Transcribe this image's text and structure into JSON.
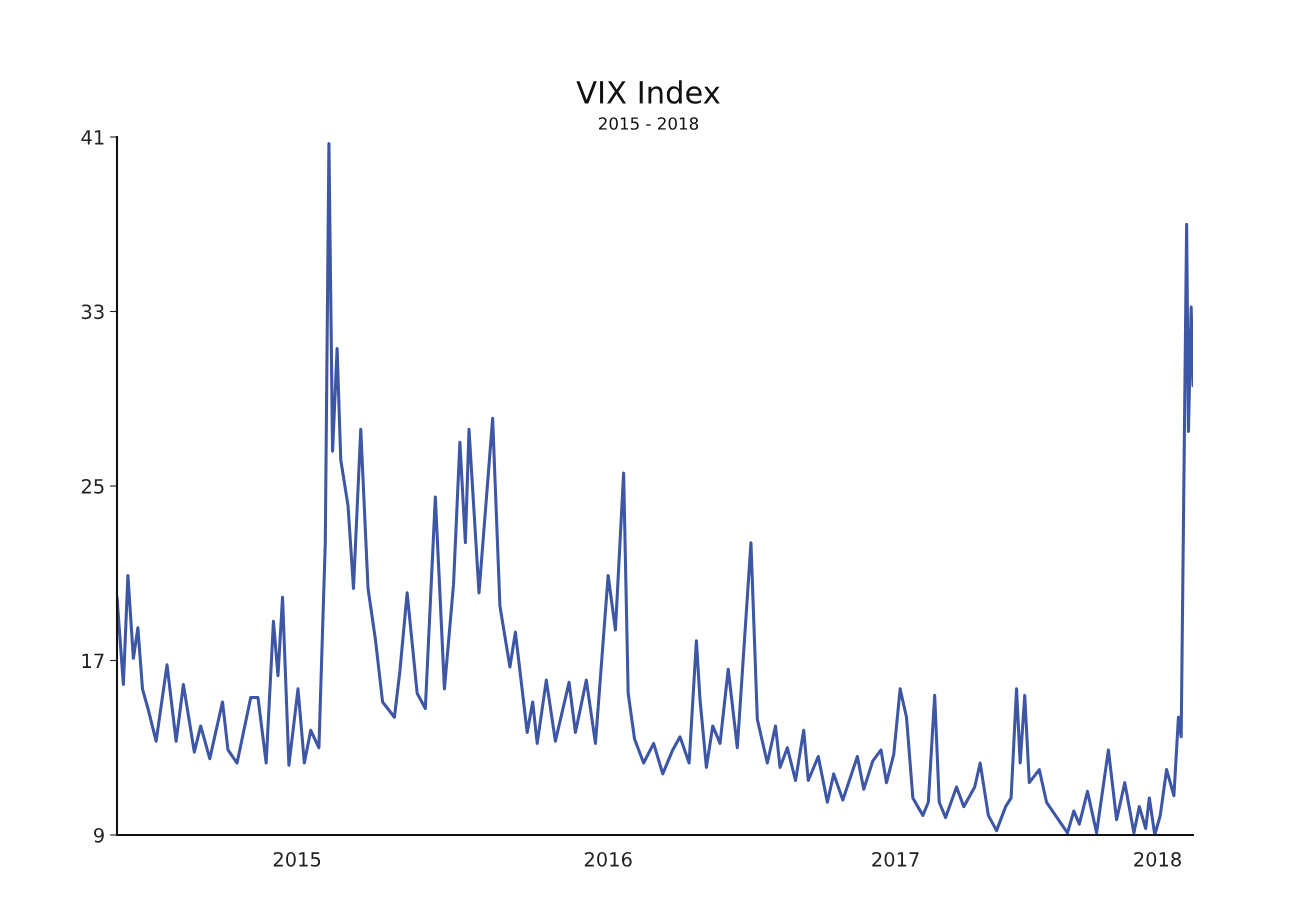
{
  "chart_data": {
    "type": "line",
    "title": "VIX Index",
    "subtitle": "2015 - 2018",
    "x": [
      "2015-01-02",
      "2015-01-09",
      "2015-01-14",
      "2015-01-20",
      "2015-01-25",
      "2015-01-30",
      "2015-02-05",
      "2015-02-14",
      "2015-02-26",
      "2015-03-08",
      "2015-03-16",
      "2015-03-28",
      "2015-04-04",
      "2015-04-14",
      "2015-04-28",
      "2015-05-04",
      "2015-05-14",
      "2015-05-29",
      "2015-06-06",
      "2015-06-15",
      "2015-06-23",
      "2015-06-28",
      "2015-07-03",
      "2015-07-10",
      "2015-07-20",
      "2015-07-27",
      "2015-08-03",
      "2015-08-12",
      "2015-08-19",
      "2015-08-23",
      "2015-08-27",
      "2015-09-01",
      "2015-09-05",
      "2015-09-13",
      "2015-09-19",
      "2015-09-27",
      "2015-10-05",
      "2015-10-13",
      "2015-10-21",
      "2015-11-03",
      "2015-11-09",
      "2015-11-17",
      "2015-11-28",
      "2015-12-07",
      "2015-12-18",
      "2015-12-28",
      "2016-01-07",
      "2016-01-14",
      "2016-01-20",
      "2016-01-24",
      "2016-02-04",
      "2016-02-19",
      "2016-02-27",
      "2016-03-09",
      "2016-03-15",
      "2016-03-28",
      "2016-04-03",
      "2016-04-08",
      "2016-04-18",
      "2016-04-28",
      "2016-05-13",
      "2016-05-20",
      "2016-06-01",
      "2016-06-11",
      "2016-06-25",
      "2016-07-03",
      "2016-07-12",
      "2016-07-17",
      "2016-07-24",
      "2016-08-03",
      "2016-08-14",
      "2016-08-24",
      "2016-09-04",
      "2016-09-12",
      "2016-09-22",
      "2016-09-30",
      "2016-10-04",
      "2016-10-11",
      "2016-10-18",
      "2016-10-26",
      "2016-11-04",
      "2016-11-14",
      "2016-11-29",
      "2016-12-06",
      "2016-12-17",
      "2016-12-26",
      "2016-12-31",
      "2017-01-08",
      "2017-01-17",
      "2017-01-26",
      "2017-01-31",
      "2017-02-11",
      "2017-02-21",
      "2017-02-28",
      "2017-03-10",
      "2017-03-26",
      "2017-04-02",
      "2017-04-12",
      "2017-04-21",
      "2017-04-27",
      "2017-05-05",
      "2017-05-12",
      "2017-05-19",
      "2017-05-26",
      "2017-06-06",
      "2017-06-12",
      "2017-06-19",
      "2017-06-24",
      "2017-07-01",
      "2017-07-13",
      "2017-07-21",
      "2017-08-02",
      "2017-08-08",
      "2017-08-17",
      "2017-08-26",
      "2017-09-05",
      "2017-09-11",
      "2017-09-17",
      "2017-09-21",
      "2017-09-26",
      "2017-10-01",
      "2017-10-12",
      "2017-10-20",
      "2017-11-02",
      "2017-11-12",
      "2017-11-19",
      "2017-11-25",
      "2017-12-04",
      "2017-12-14",
      "2017-12-27",
      "2018-01-05",
      "2018-01-14",
      "2018-01-24",
      "2018-01-30",
      "2018-02-06",
      "2018-02-10",
      "2018-02-16",
      "2018-02-22",
      "2018-03-01",
      "2018-03-09",
      "2018-03-14",
      "2018-03-17",
      "2018-03-23",
      "2018-03-25",
      "2018-03-28",
      "2018-03-30"
    ],
    "series": [
      {
        "color": "#3d56a6",
        "values": [
          19.9,
          15.9,
          20.9,
          17.1,
          18.5,
          15.7,
          14.8,
          13.3,
          16.8,
          13.3,
          15.9,
          12.8,
          14.0,
          12.5,
          15.1,
          12.9,
          12.3,
          15.3,
          15.3,
          12.3,
          18.8,
          16.3,
          19.9,
          12.2,
          15.7,
          12.3,
          13.8,
          13.0,
          22.4,
          40.7,
          26.6,
          31.3,
          26.2,
          24.1,
          20.3,
          27.6,
          20.3,
          18.0,
          15.1,
          14.4,
          16.5,
          20.1,
          15.5,
          14.8,
          24.5,
          15.7,
          20.5,
          27.0,
          22.4,
          27.6,
          20.1,
          28.1,
          19.5,
          16.7,
          18.3,
          13.7,
          15.1,
          13.2,
          16.1,
          13.3,
          16.0,
          13.7,
          16.1,
          13.2,
          20.9,
          18.4,
          25.6,
          15.5,
          13.4,
          12.3,
          13.2,
          11.8,
          12.9,
          13.5,
          12.3,
          17.9,
          15.2,
          12.1,
          14.0,
          13.2,
          16.6,
          13.0,
          22.4,
          14.3,
          12.3,
          14.0,
          12.1,
          13.0,
          11.5,
          13.8,
          11.5,
          12.6,
          10.5,
          11.8,
          10.6,
          12.6,
          11.1,
          12.4,
          12.9,
          11.4,
          12.7,
          15.7,
          14.4,
          10.7,
          9.9,
          10.5,
          15.4,
          10.5,
          9.8,
          11.2,
          10.3,
          11.2,
          12.3,
          9.9,
          9.2,
          10.3,
          10.7,
          15.7,
          12.3,
          15.4,
          11.4,
          12.0,
          10.5,
          9.7,
          9.1,
          10.1,
          9.5,
          11.0,
          9.1,
          12.9,
          9.7,
          11.4,
          9.1,
          10.3,
          9.3,
          10.7,
          9.0,
          9.9,
          12.0,
          10.8,
          14.4,
          13.5,
          37.0,
          27.5,
          33.2,
          29.6
        ]
      }
    ],
    "xlim": [
      "2015-01-02",
      "2018-03-30"
    ],
    "xticks": [
      {
        "value": "2015-07-19",
        "label": "2015"
      },
      {
        "value": "2016-06-25",
        "label": "2016"
      },
      {
        "value": "2017-05-07",
        "label": "2017"
      },
      {
        "value": "2018-02-19",
        "label": "2018"
      }
    ],
    "ylim": [
      9,
      41
    ],
    "yticks": [
      9,
      17,
      25,
      33,
      41
    ],
    "grid": false
  }
}
